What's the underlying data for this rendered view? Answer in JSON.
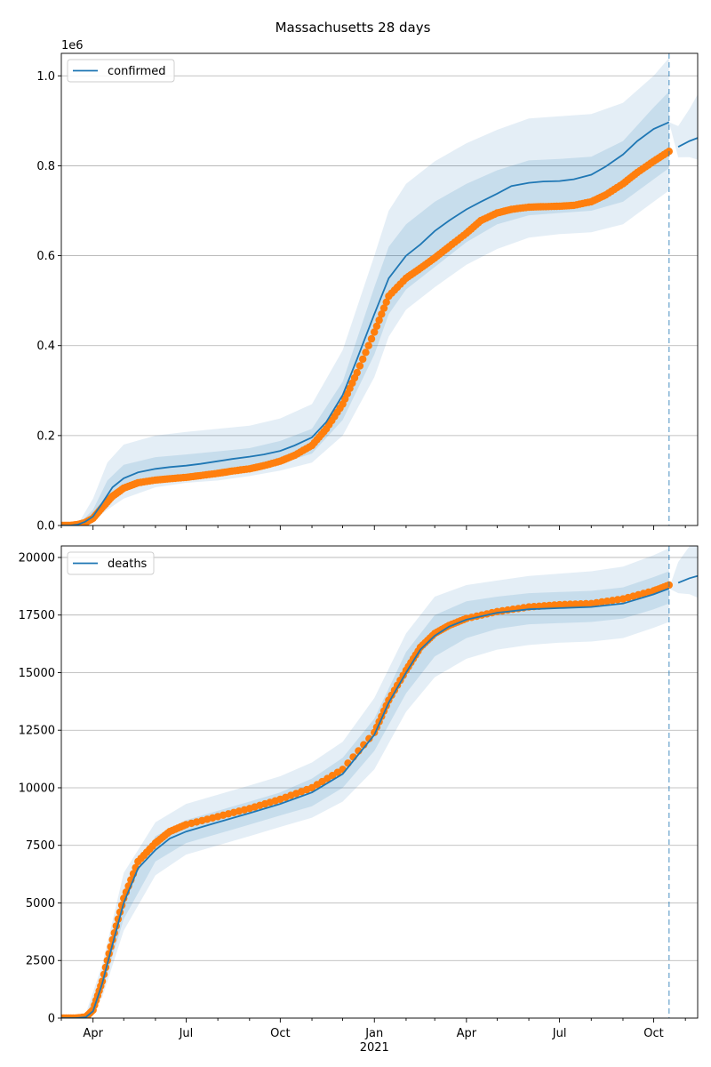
{
  "figure": {
    "title": "Massachusetts 28 days"
  },
  "colors": {
    "model": "#1f77b4",
    "observed": "#ff7f0e",
    "band": "#1f77b4",
    "grid": "#b0b0b0",
    "forecast_line": "#1f77b4"
  },
  "chart_data": [
    {
      "type": "line",
      "legend": "confirmed",
      "legend_position": "top-left",
      "y_offset_label": "1e6",
      "x_ticks": [
        "Apr",
        "Jul",
        "Oct",
        "Jan",
        "Apr",
        "Jul",
        "Oct"
      ],
      "x_year_label": "2021",
      "x_range": [
        "2020-03-01",
        "2021-11-13"
      ],
      "forecast_start": "2021-10-16",
      "ylim": [
        0,
        1.05
      ],
      "y_ticks": [
        "0.0",
        "0.2",
        "0.4",
        "0.6",
        "0.8",
        "1.0"
      ],
      "y_tick_values": [
        0,
        0.2,
        0.4,
        0.6,
        0.8,
        1.0
      ],
      "grid": "horizontal",
      "series": [
        {
          "name": "confirmed",
          "role": "model",
          "x": [
            "2020-03-01",
            "2020-03-10",
            "2020-03-17",
            "2020-03-24",
            "2020-04-01",
            "2020-04-10",
            "2020-04-20",
            "2020-05-01",
            "2020-05-15",
            "2020-06-01",
            "2020-06-15",
            "2020-07-01",
            "2020-07-15",
            "2020-08-01",
            "2020-08-15",
            "2020-09-01",
            "2020-09-15",
            "2020-10-01",
            "2020-10-15",
            "2020-11-01",
            "2020-11-15",
            "2020-12-01",
            "2020-12-15",
            "2021-01-01",
            "2021-01-15",
            "2021-02-01",
            "2021-02-15",
            "2021-03-01",
            "2021-03-15",
            "2021-04-01",
            "2021-04-15",
            "2021-05-01",
            "2021-05-15",
            "2021-06-01",
            "2021-06-15",
            "2021-07-01",
            "2021-07-15",
            "2021-08-01",
            "2021-08-15",
            "2021-09-01",
            "2021-09-15",
            "2021-10-01",
            "2021-10-16",
            "2021-10-25",
            "2021-11-05",
            "2021-11-13"
          ],
          "y": [
            0.0,
            0.0,
            0.002,
            0.008,
            0.02,
            0.05,
            0.085,
            0.105,
            0.118,
            0.126,
            0.13,
            0.133,
            0.137,
            0.143,
            0.148,
            0.153,
            0.158,
            0.166,
            0.178,
            0.196,
            0.23,
            0.29,
            0.37,
            0.47,
            0.55,
            0.6,
            0.625,
            0.655,
            0.678,
            0.703,
            0.72,
            0.738,
            0.755,
            0.762,
            0.765,
            0.766,
            0.77,
            0.78,
            0.798,
            0.825,
            0.855,
            0.882,
            0.897,
            0.842,
            0.855,
            0.862
          ]
        },
        {
          "name": "confirmed observed",
          "role": "observed",
          "x": [
            "2020-03-01",
            "2020-03-10",
            "2020-03-17",
            "2020-03-24",
            "2020-04-01",
            "2020-04-10",
            "2020-04-20",
            "2020-05-01",
            "2020-05-15",
            "2020-06-01",
            "2020-06-15",
            "2020-07-01",
            "2020-07-15",
            "2020-08-01",
            "2020-08-15",
            "2020-09-01",
            "2020-09-15",
            "2020-10-01",
            "2020-10-15",
            "2020-11-01",
            "2020-11-15",
            "2020-12-01",
            "2020-12-15",
            "2021-01-01",
            "2021-01-15",
            "2021-02-01",
            "2021-02-15",
            "2021-03-01",
            "2021-03-15",
            "2021-04-01",
            "2021-04-15",
            "2021-05-01",
            "2021-05-15",
            "2021-06-01",
            "2021-06-15",
            "2021-07-01",
            "2021-07-15",
            "2021-08-01",
            "2021-08-15",
            "2021-09-01",
            "2021-09-15",
            "2021-10-01",
            "2021-10-16"
          ],
          "y": [
            0.0,
            0.0,
            0.002,
            0.006,
            0.016,
            0.04,
            0.065,
            0.083,
            0.095,
            0.101,
            0.104,
            0.107,
            0.111,
            0.116,
            0.121,
            0.126,
            0.133,
            0.143,
            0.156,
            0.178,
            0.215,
            0.27,
            0.34,
            0.43,
            0.51,
            0.55,
            0.572,
            0.595,
            0.62,
            0.65,
            0.678,
            0.695,
            0.703,
            0.708,
            0.709,
            0.71,
            0.712,
            0.72,
            0.735,
            0.76,
            0.785,
            0.81,
            0.832
          ]
        }
      ],
      "bands": {
        "x": [
          "2020-03-01",
          "2020-03-17",
          "2020-04-01",
          "2020-04-15",
          "2020-05-01",
          "2020-06-01",
          "2020-07-01",
          "2020-08-01",
          "2020-09-01",
          "2020-10-01",
          "2020-11-01",
          "2020-12-01",
          "2021-01-01",
          "2021-01-15",
          "2021-02-01",
          "2021-03-01",
          "2021-04-01",
          "2021-05-01",
          "2021-06-01",
          "2021-07-01",
          "2021-08-01",
          "2021-09-01",
          "2021-10-01",
          "2021-10-16"
        ],
        "lower_outer": [
          0.0,
          0.0,
          0.01,
          0.035,
          0.06,
          0.085,
          0.095,
          0.1,
          0.11,
          0.122,
          0.14,
          0.2,
          0.33,
          0.42,
          0.48,
          0.53,
          0.58,
          0.615,
          0.64,
          0.648,
          0.652,
          0.67,
          0.72,
          0.745
        ],
        "upper_outer": [
          0.0,
          0.002,
          0.06,
          0.14,
          0.18,
          0.2,
          0.208,
          0.215,
          0.222,
          0.238,
          0.27,
          0.39,
          0.6,
          0.7,
          0.76,
          0.81,
          0.85,
          0.88,
          0.905,
          0.91,
          0.915,
          0.94,
          1.0,
          1.04
        ],
        "lower_inner": [
          0.0,
          0.0,
          0.015,
          0.05,
          0.078,
          0.1,
          0.108,
          0.115,
          0.125,
          0.138,
          0.16,
          0.235,
          0.38,
          0.47,
          0.525,
          0.575,
          0.63,
          0.67,
          0.69,
          0.695,
          0.7,
          0.72,
          0.77,
          0.795
        ],
        "upper_inner": [
          0.0,
          0.001,
          0.035,
          0.1,
          0.135,
          0.152,
          0.158,
          0.165,
          0.172,
          0.188,
          0.215,
          0.32,
          0.53,
          0.62,
          0.67,
          0.72,
          0.76,
          0.79,
          0.812,
          0.815,
          0.82,
          0.855,
          0.93,
          0.965
        ]
      }
    },
    {
      "type": "line",
      "legend": "deaths",
      "legend_position": "top-left",
      "x_ticks": [
        "Apr",
        "Jul",
        "Oct",
        "Jan",
        "Apr",
        "Jul",
        "Oct"
      ],
      "x_year_label": "2021",
      "x_range": [
        "2020-03-01",
        "2021-11-13"
      ],
      "forecast_start": "2021-10-16",
      "ylim": [
        0,
        20500
      ],
      "y_ticks": [
        "0",
        "2500",
        "5000",
        "7500",
        "10000",
        "12500",
        "15000",
        "17500",
        "20000"
      ],
      "y_tick_values": [
        0,
        2500,
        5000,
        7500,
        10000,
        12500,
        15000,
        17500,
        20000
      ],
      "grid": "horizontal",
      "series": [
        {
          "name": "deaths",
          "role": "model",
          "x": [
            "2020-03-01",
            "2020-03-15",
            "2020-03-25",
            "2020-04-01",
            "2020-04-10",
            "2020-04-20",
            "2020-05-01",
            "2020-05-15",
            "2020-06-01",
            "2020-06-15",
            "2020-07-01",
            "2020-08-01",
            "2020-09-01",
            "2020-10-01",
            "2020-11-01",
            "2020-12-01",
            "2021-01-01",
            "2021-01-15",
            "2021-02-01",
            "2021-02-15",
            "2021-03-01",
            "2021-03-15",
            "2021-04-01",
            "2021-05-01",
            "2021-06-01",
            "2021-07-01",
            "2021-08-01",
            "2021-09-01",
            "2021-10-01",
            "2021-10-16",
            "2021-10-25",
            "2021-11-05",
            "2021-11-13"
          ],
          "y": [
            0,
            0,
            40,
            300,
            1500,
            3200,
            5000,
            6500,
            7300,
            7800,
            8100,
            8500,
            8900,
            9300,
            9800,
            10600,
            12300,
            13700,
            15000,
            16000,
            16600,
            17000,
            17300,
            17600,
            17750,
            17800,
            17850,
            18000,
            18400,
            18650,
            18900,
            19100,
            19200
          ]
        },
        {
          "name": "deaths observed",
          "role": "observed",
          "x": [
            "2020-03-01",
            "2020-03-15",
            "2020-03-25",
            "2020-04-01",
            "2020-04-10",
            "2020-04-20",
            "2020-05-01",
            "2020-05-15",
            "2020-06-01",
            "2020-06-15",
            "2020-07-01",
            "2020-08-01",
            "2020-09-01",
            "2020-10-01",
            "2020-11-01",
            "2020-12-01",
            "2021-01-01",
            "2021-01-15",
            "2021-02-01",
            "2021-02-15",
            "2021-03-01",
            "2021-03-15",
            "2021-04-01",
            "2021-05-01",
            "2021-06-01",
            "2021-07-01",
            "2021-08-01",
            "2021-09-01",
            "2021-10-01",
            "2021-10-16"
          ],
          "y": [
            0,
            0,
            50,
            350,
            1600,
            3400,
            5200,
            6800,
            7600,
            8100,
            8400,
            8750,
            9100,
            9500,
            10000,
            10800,
            12400,
            13800,
            15100,
            16100,
            16700,
            17050,
            17350,
            17650,
            17850,
            17950,
            18000,
            18200,
            18550,
            18800
          ]
        }
      ],
      "bands": {
        "x": [
          "2020-03-01",
          "2020-03-25",
          "2020-04-10",
          "2020-05-01",
          "2020-06-01",
          "2020-07-01",
          "2020-08-01",
          "2020-09-01",
          "2020-10-01",
          "2020-11-01",
          "2020-12-01",
          "2021-01-01",
          "2021-02-01",
          "2021-03-01",
          "2021-04-01",
          "2021-05-01",
          "2021-06-01",
          "2021-07-01",
          "2021-08-01",
          "2021-09-01",
          "2021-10-01",
          "2021-10-16"
        ],
        "lower_outer": [
          0,
          0,
          900,
          3800,
          6200,
          7100,
          7500,
          7900,
          8300,
          8700,
          9400,
          10800,
          13300,
          14800,
          15600,
          16000,
          16200,
          16300,
          16350,
          16500,
          16950,
          17200
        ],
        "upper_outer": [
          0,
          200,
          2300,
          6300,
          8500,
          9300,
          9700,
          10100,
          10500,
          11100,
          12000,
          13900,
          16700,
          18300,
          18800,
          19000,
          19200,
          19300,
          19400,
          19600,
          20100,
          20400
        ],
        "lower_inner": [
          0,
          20,
          1200,
          4300,
          6800,
          7600,
          8000,
          8400,
          8800,
          9200,
          10000,
          11600,
          14100,
          15700,
          16500,
          16900,
          17100,
          17150,
          17200,
          17350,
          17750,
          18000
        ],
        "upper_inner": [
          0,
          100,
          1800,
          5600,
          7900,
          8600,
          9000,
          9400,
          9800,
          10400,
          11300,
          13000,
          15900,
          17500,
          18100,
          18300,
          18450,
          18500,
          18550,
          18700,
          19150,
          19400
        ]
      }
    }
  ]
}
